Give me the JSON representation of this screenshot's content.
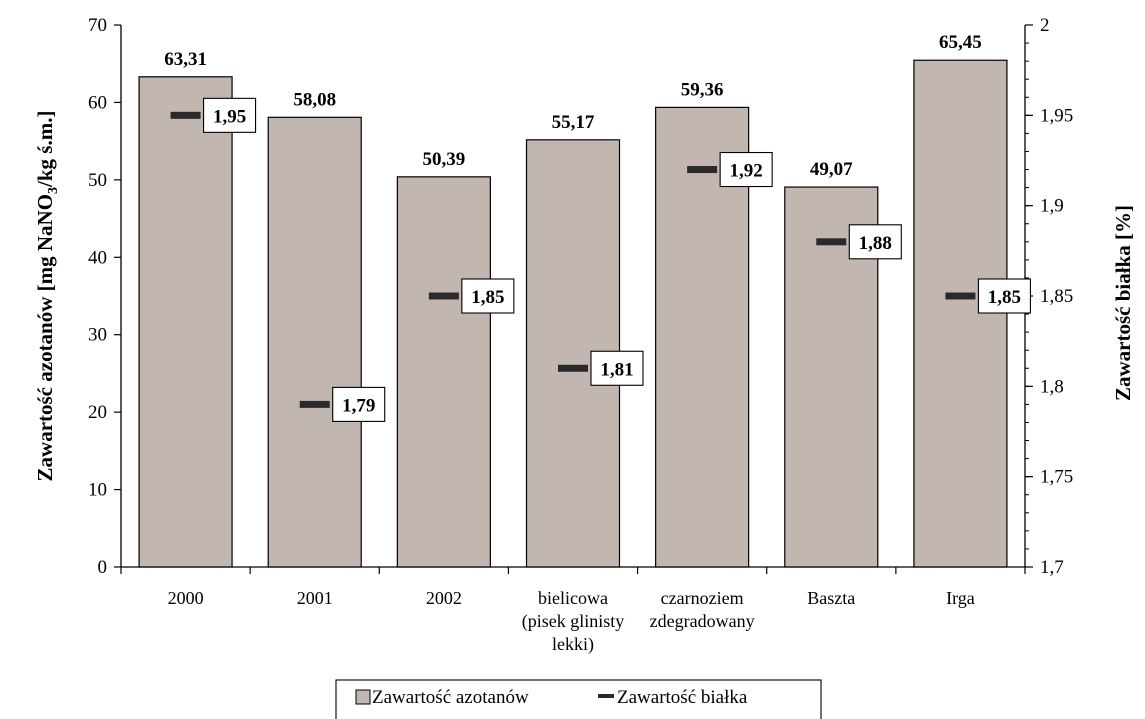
{
  "chart_data": {
    "type": "bar",
    "categories": [
      [
        "2000"
      ],
      [
        "2001"
      ],
      [
        "2002"
      ],
      [
        "bielicowa",
        "(pisek glinisty",
        "lekki)"
      ],
      [
        "czarnoziem",
        "zdegradowany"
      ],
      [
        "Baszta"
      ],
      [
        "Irga"
      ]
    ],
    "series": [
      {
        "name": "Zawartość azotanów",
        "type": "bar",
        "axis": "left",
        "values": [
          63.31,
          58.08,
          50.39,
          55.17,
          59.36,
          49.07,
          65.45
        ],
        "labels": [
          "63,31",
          "58,08",
          "50,39",
          "55,17",
          "59,36",
          "49,07",
          "65,45"
        ]
      },
      {
        "name": "Zawartość białka",
        "type": "marker",
        "axis": "right",
        "values": [
          1.95,
          1.79,
          1.85,
          1.81,
          1.92,
          1.88,
          1.85
        ],
        "labels": [
          "1,95",
          "1,79",
          "1,85",
          "1,81",
          "1,92",
          "1,88",
          "1,85"
        ]
      }
    ],
    "ylabel_left": {
      "prefix": "Zawartość azotanów [mg NaNO",
      "subscript": "3",
      "suffix": "/kg ś.m.]"
    },
    "ylabel_right": "Zawartość białka [%]",
    "ylim_left": [
      0,
      70
    ],
    "yticks_left": [
      {
        "value": 0,
        "label": "0"
      },
      {
        "value": 10,
        "label": "10"
      },
      {
        "value": 20,
        "label": "20"
      },
      {
        "value": 30,
        "label": "30"
      },
      {
        "value": 40,
        "label": "40"
      },
      {
        "value": 50,
        "label": "50"
      },
      {
        "value": 60,
        "label": "60"
      },
      {
        "value": 70,
        "label": "70"
      }
    ],
    "ylim_right": [
      1.7,
      2.0
    ],
    "yticks_right": [
      {
        "value": 1.7,
        "label": "1,7"
      },
      {
        "value": 1.75,
        "label": "1,75"
      },
      {
        "value": 1.8,
        "label": "1,8"
      },
      {
        "value": 1.85,
        "label": "1,85"
      },
      {
        "value": 1.9,
        "label": "1,9"
      },
      {
        "value": 1.95,
        "label": "1,95"
      },
      {
        "value": 2.0,
        "label": "2"
      }
    ],
    "grid": false,
    "legend_position": "bottom",
    "colors": {
      "bar_fill": "#c2b6b1",
      "bar_stroke": "#000000",
      "marker": "#2a2a2a",
      "text": "#000000"
    }
  }
}
